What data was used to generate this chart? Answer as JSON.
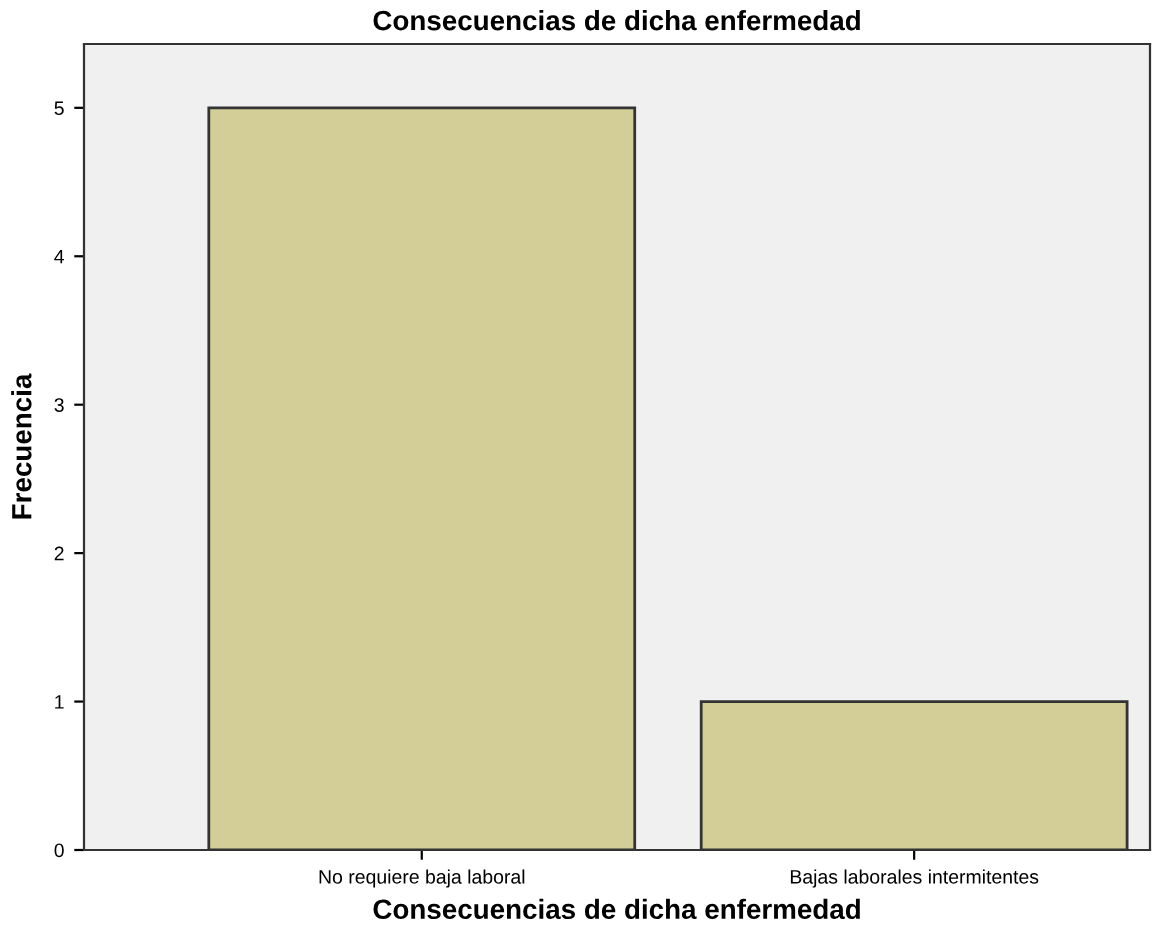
{
  "chart_data": {
    "type": "bar",
    "title": "Consecuencias de dicha enfermedad",
    "xlabel": "Consecuencias de dicha enfermedad",
    "ylabel": "Frecuencia",
    "categories": [
      "No requiere baja laboral",
      "Bajas laborales intermitentes"
    ],
    "values": [
      5,
      1
    ],
    "color": "#d3ce97",
    "ylim": [
      0,
      5.43
    ],
    "yticks": [
      0,
      1,
      2,
      3,
      4,
      5
    ],
    "grid": false
  }
}
